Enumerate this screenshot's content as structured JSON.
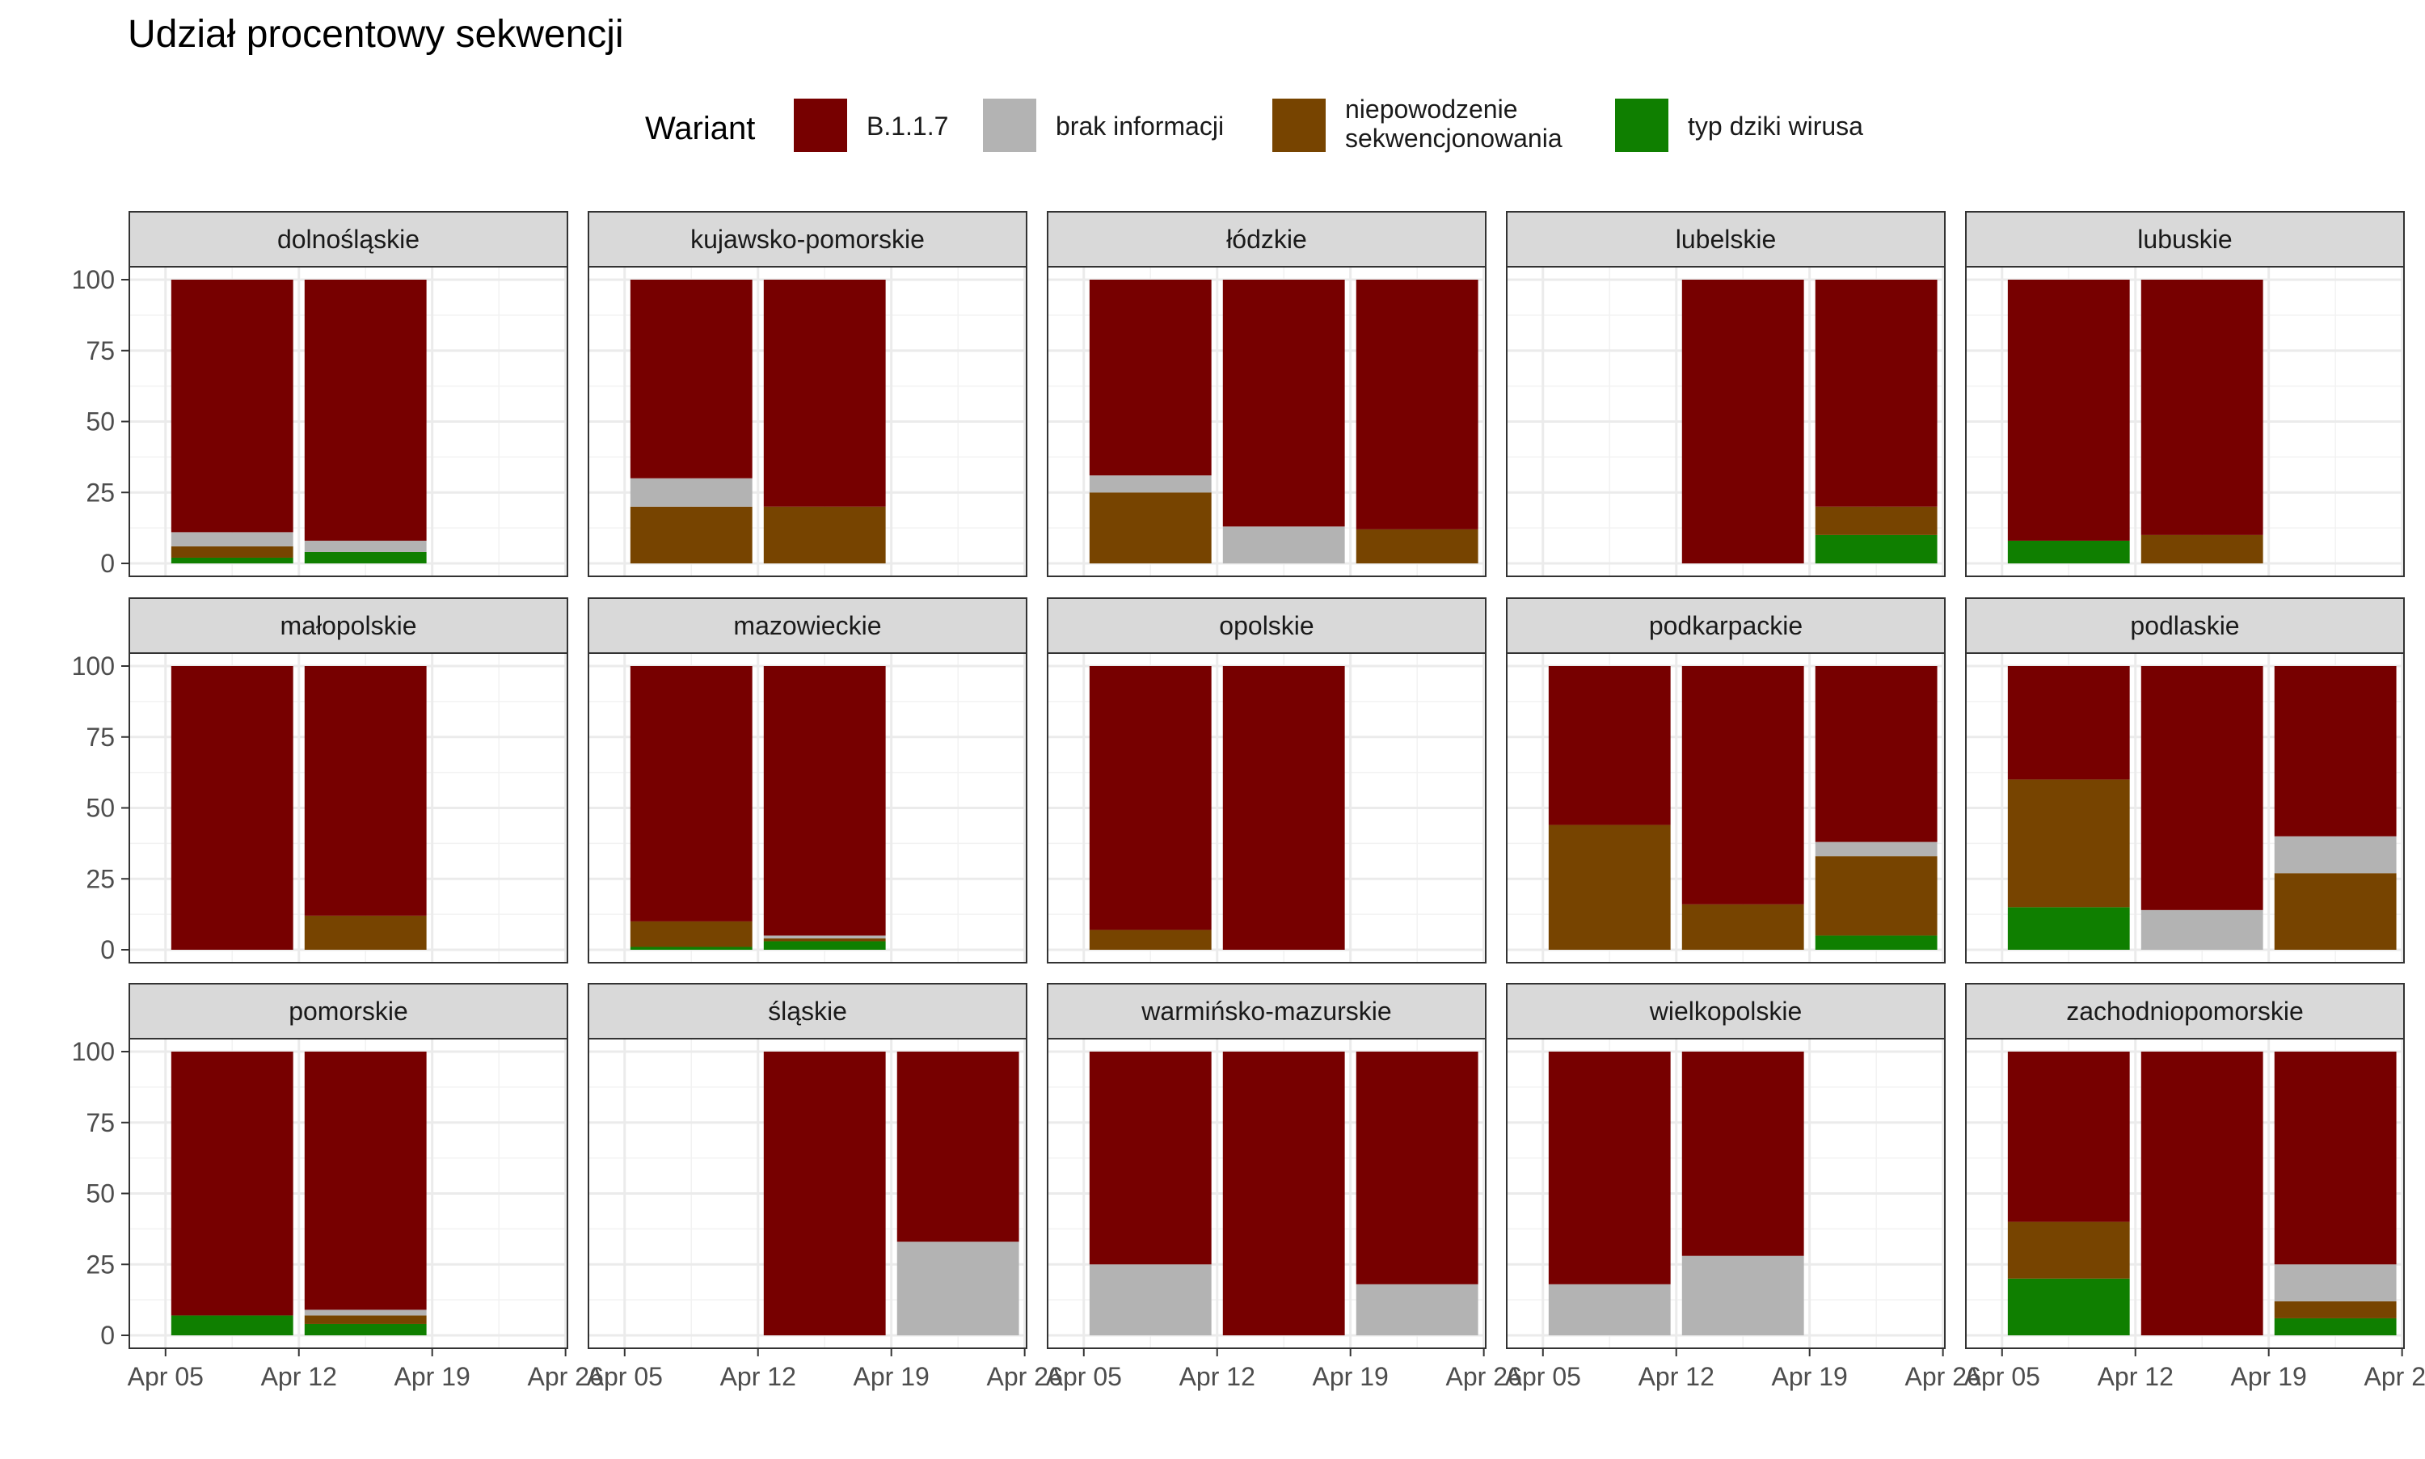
{
  "chart_data": {
    "type": "bar",
    "stacked": true,
    "faceted": true,
    "title": "Udział procentowy sekwencji",
    "ylim": [
      0,
      100
    ],
    "y_ticks": [
      0,
      25,
      50,
      75,
      100
    ],
    "x_ticks": [
      "Apr 05",
      "Apr 12",
      "Apr 19",
      "Apr 26"
    ],
    "x_categories": [
      "Apr 08",
      "Apr 15",
      "Apr 22"
    ],
    "grid": true,
    "legend": {
      "title": "Wariant",
      "position": "top",
      "entries": [
        {
          "key": "b117",
          "label": "B.1.1.7",
          "color": "#770000"
        },
        {
          "key": "brak",
          "label": "brak informacji",
          "color": "#b3b3b3"
        },
        {
          "key": "niepowodzenie",
          "label": "niepowodzenie sekwencjonowania",
          "lines": [
            "niepowodzenie",
            "sekwencjonowania"
          ],
          "color": "#774400"
        },
        {
          "key": "dziki",
          "label": "typ dziki wirusa",
          "color": "#0f7f00"
        }
      ]
    },
    "stack_order": [
      "dziki",
      "niepowodzenie",
      "brak",
      "b117"
    ],
    "panels": [
      {
        "name": "dolnośląskie",
        "bars": [
          {
            "week": 0,
            "dziki": 2,
            "niepowodzenie": 4,
            "brak": 5,
            "b117": 89
          },
          {
            "week": 1,
            "dziki": 4,
            "niepowodzenie": 0,
            "brak": 4,
            "b117": 92
          }
        ]
      },
      {
        "name": "kujawsko-pomorskie",
        "bars": [
          {
            "week": 0,
            "dziki": 0,
            "niepowodzenie": 20,
            "brak": 10,
            "b117": 70
          },
          {
            "week": 1,
            "dziki": 0,
            "niepowodzenie": 20,
            "brak": 0,
            "b117": 80
          }
        ]
      },
      {
        "name": "łódzkie",
        "bars": [
          {
            "week": 0,
            "dziki": 0,
            "niepowodzenie": 25,
            "brak": 6,
            "b117": 69
          },
          {
            "week": 1,
            "dziki": 0,
            "niepowodzenie": 0,
            "brak": 13,
            "b117": 87
          },
          {
            "week": 2,
            "dziki": 0,
            "niepowodzenie": 12,
            "brak": 0,
            "b117": 88
          }
        ]
      },
      {
        "name": "lubelskie",
        "bars": [
          {
            "week": 1,
            "dziki": 0,
            "niepowodzenie": 0,
            "brak": 0,
            "b117": 100
          },
          {
            "week": 2,
            "dziki": 10,
            "niepowodzenie": 10,
            "brak": 0,
            "b117": 80
          }
        ]
      },
      {
        "name": "lubuskie",
        "bars": [
          {
            "week": 0,
            "dziki": 8,
            "niepowodzenie": 0,
            "brak": 0,
            "b117": 92
          },
          {
            "week": 1,
            "dziki": 0,
            "niepowodzenie": 10,
            "brak": 0,
            "b117": 90
          }
        ]
      },
      {
        "name": "małopolskie",
        "bars": [
          {
            "week": 0,
            "dziki": 0,
            "niepowodzenie": 0,
            "brak": 0,
            "b117": 100
          },
          {
            "week": 1,
            "dziki": 0,
            "niepowodzenie": 12,
            "brak": 0,
            "b117": 88
          }
        ]
      },
      {
        "name": "mazowieckie",
        "bars": [
          {
            "week": 0,
            "dziki": 1,
            "niepowodzenie": 9,
            "brak": 0,
            "b117": 90
          },
          {
            "week": 1,
            "dziki": 3,
            "niepowodzenie": 1,
            "brak": 1,
            "b117": 95
          }
        ]
      },
      {
        "name": "opolskie",
        "bars": [
          {
            "week": 0,
            "dziki": 0,
            "niepowodzenie": 7,
            "brak": 0,
            "b117": 93
          },
          {
            "week": 1,
            "dziki": 0,
            "niepowodzenie": 0,
            "brak": 0,
            "b117": 100
          }
        ]
      },
      {
        "name": "podkarpackie",
        "bars": [
          {
            "week": 0,
            "dziki": 0,
            "niepowodzenie": 44,
            "brak": 0,
            "b117": 56
          },
          {
            "week": 1,
            "dziki": 0,
            "niepowodzenie": 16,
            "brak": 0,
            "b117": 84
          },
          {
            "week": 2,
            "dziki": 5,
            "niepowodzenie": 28,
            "brak": 5,
            "b117": 62
          }
        ]
      },
      {
        "name": "podlaskie",
        "bars": [
          {
            "week": 0,
            "dziki": 15,
            "niepowodzenie": 45,
            "brak": 0,
            "b117": 40
          },
          {
            "week": 1,
            "dziki": 0,
            "niepowodzenie": 0,
            "brak": 14,
            "b117": 86
          },
          {
            "week": 2,
            "dziki": 0,
            "niepowodzenie": 27,
            "brak": 13,
            "b117": 60
          }
        ]
      },
      {
        "name": "pomorskie",
        "bars": [
          {
            "week": 0,
            "dziki": 7,
            "niepowodzenie": 0,
            "brak": 0,
            "b117": 93
          },
          {
            "week": 1,
            "dziki": 4,
            "niepowodzenie": 3,
            "brak": 2,
            "b117": 91
          }
        ]
      },
      {
        "name": "śląskie",
        "bars": [
          {
            "week": 1,
            "dziki": 0,
            "niepowodzenie": 0,
            "brak": 0,
            "b117": 100
          },
          {
            "week": 2,
            "dziki": 0,
            "niepowodzenie": 0,
            "brak": 33,
            "b117": 67
          }
        ]
      },
      {
        "name": "warmińsko-mazurskie",
        "bars": [
          {
            "week": 0,
            "dziki": 0,
            "niepowodzenie": 0,
            "brak": 25,
            "b117": 75
          },
          {
            "week": 1,
            "dziki": 0,
            "niepowodzenie": 0,
            "brak": 0,
            "b117": 100
          },
          {
            "week": 2,
            "dziki": 0,
            "niepowodzenie": 0,
            "brak": 18,
            "b117": 82
          }
        ]
      },
      {
        "name": "wielkopolskie",
        "bars": [
          {
            "week": 0,
            "dziki": 0,
            "niepowodzenie": 0,
            "brak": 18,
            "b117": 82
          },
          {
            "week": 1,
            "dziki": 0,
            "niepowodzenie": 0,
            "brak": 28,
            "b117": 72
          }
        ]
      },
      {
        "name": "zachodniopomorskie",
        "bars": [
          {
            "week": 0,
            "dziki": 20,
            "niepowodzenie": 20,
            "brak": 0,
            "b117": 60
          },
          {
            "week": 1,
            "dziki": 0,
            "niepowodzenie": 0,
            "brak": 0,
            "b117": 100
          },
          {
            "week": 2,
            "dziki": 6,
            "niepowodzenie": 6,
            "brak": 13,
            "b117": 75
          }
        ]
      }
    ]
  }
}
